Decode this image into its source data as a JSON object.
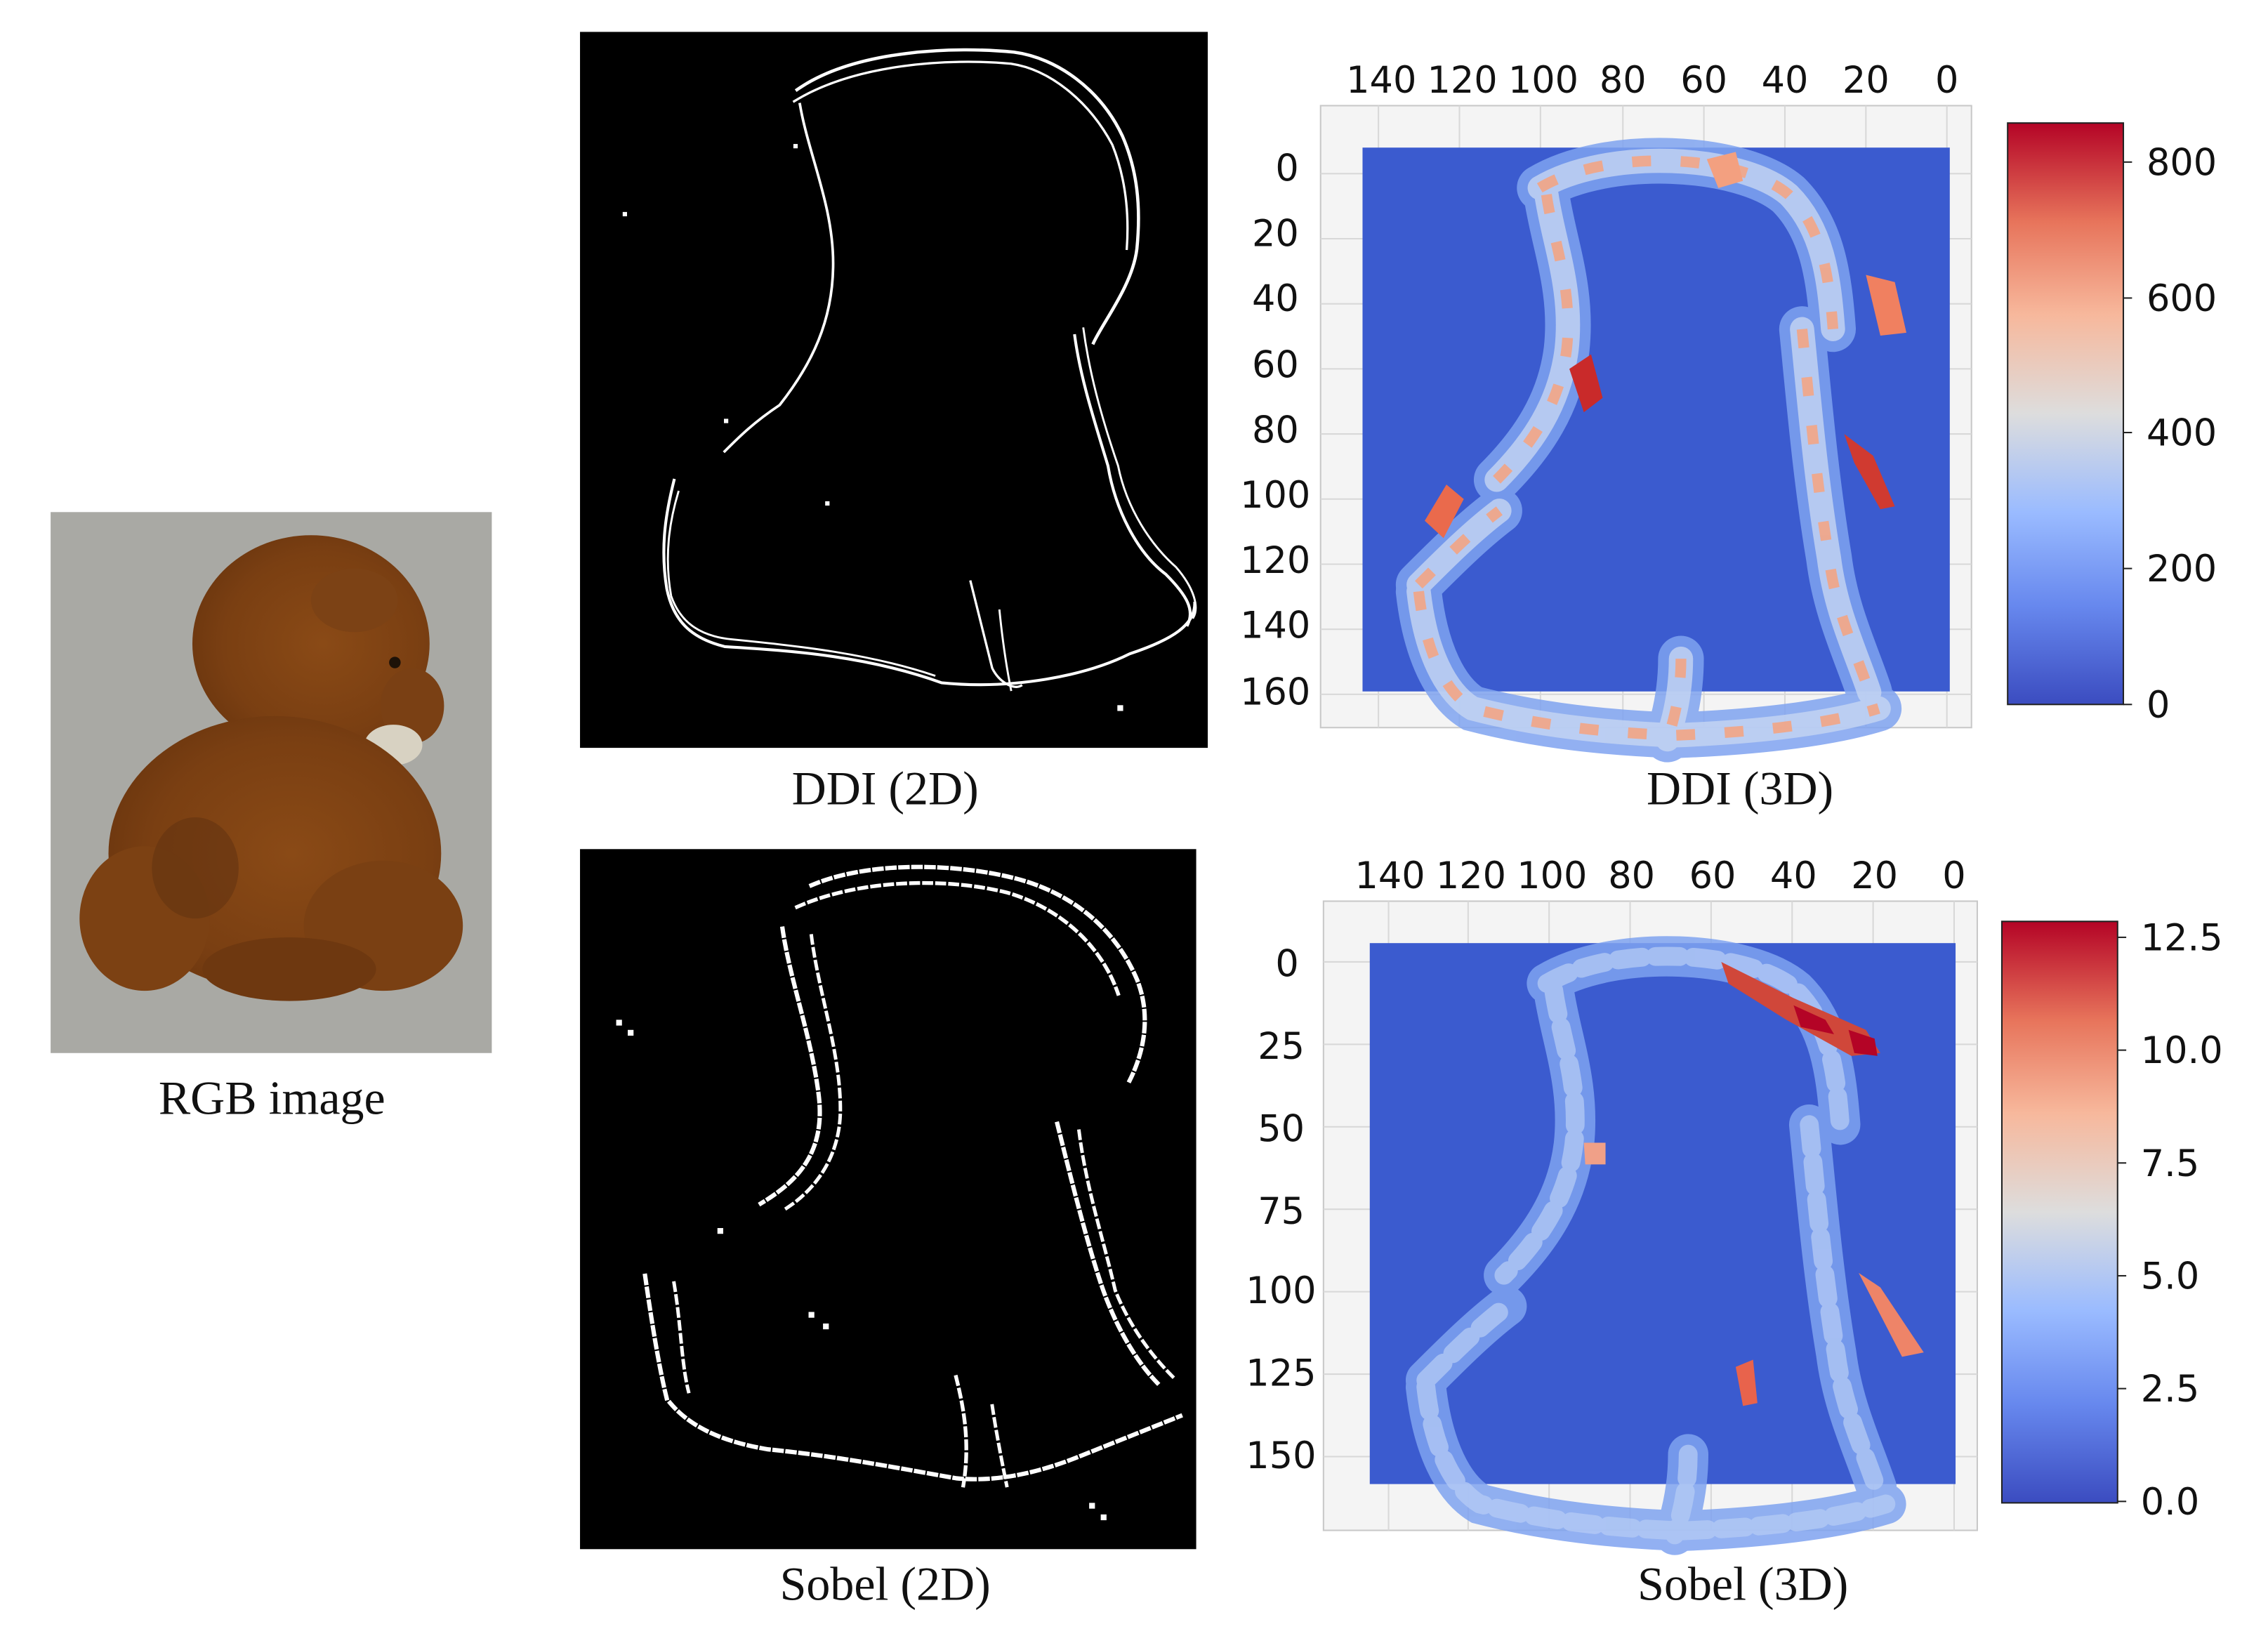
{
  "captions": {
    "rgb": "RGB image",
    "ddi_2d": "DDI (2D)",
    "ddi_3d": "DDI (3D)",
    "sobel_2d": "Sobel (2D)",
    "sobel_3d": "Sobel (3D)"
  },
  "colors": {
    "background": "#ffffff",
    "edge_panel": "#000000",
    "edge_line": "#ffffff",
    "surface_base": "#3b5bcf",
    "colormap": [
      "#3b4cc0",
      "#7b9ff9",
      "#c0d4f5",
      "#dddddd",
      "#f7b89c",
      "#ee8468",
      "#b40426"
    ]
  },
  "chart_data": [
    {
      "type": "heatmap",
      "title": "DDI (3D)",
      "x_ticks": [
        "140",
        "120",
        "100",
        "80",
        "60",
        "40",
        "20",
        "0"
      ],
      "y_ticks": [
        "0",
        "20",
        "40",
        "60",
        "80",
        "100",
        "120",
        "140",
        "160"
      ],
      "xlim": [
        150,
        0
      ],
      "ylim": [
        0,
        165
      ],
      "colorbar": {
        "ticks": [
          "800",
          "600",
          "400",
          "200",
          "0"
        ],
        "range": [
          0,
          850
        ],
        "colormap": "coolwarm"
      }
    },
    {
      "type": "heatmap",
      "title": "Sobel (3D)",
      "x_ticks": [
        "140",
        "120",
        "100",
        "80",
        "60",
        "40",
        "20",
        "0"
      ],
      "y_ticks": [
        "0",
        "25",
        "50",
        "75",
        "100",
        "125",
        "150"
      ],
      "xlim": [
        150,
        0
      ],
      "ylim": [
        0,
        165
      ],
      "colorbar": {
        "ticks": [
          "12.5",
          "10.0",
          "7.5",
          "5.0",
          "2.5",
          "0.0"
        ],
        "range": [
          0,
          12.7
        ],
        "colormap": "coolwarm"
      }
    }
  ]
}
